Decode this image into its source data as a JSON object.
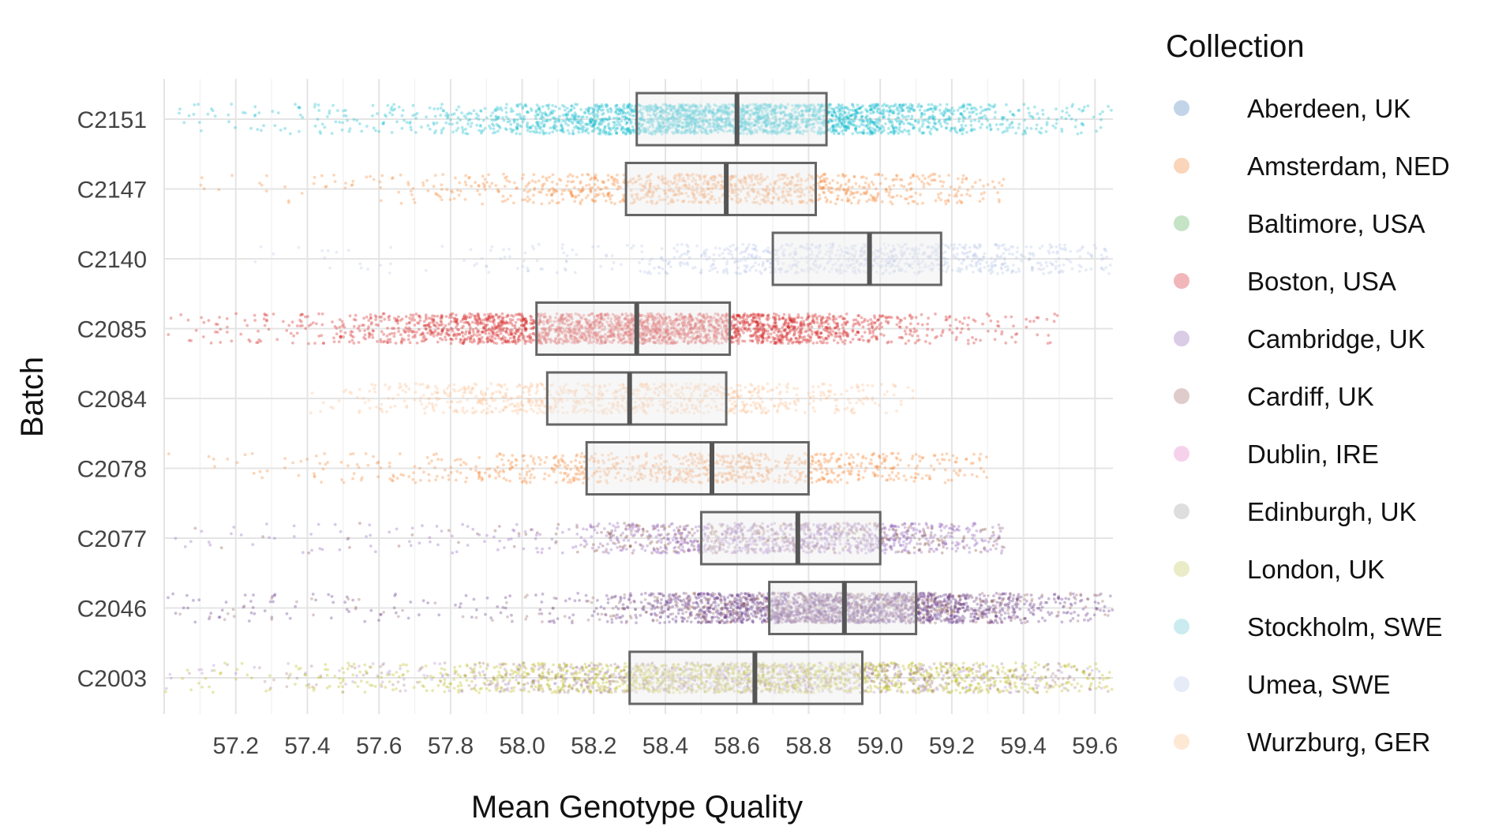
{
  "chart_data": {
    "type": "box_jitter",
    "title": "",
    "xlabel": "Mean Genotype Quality",
    "ylabel": "Batch",
    "xlim": [
      57.0,
      59.65
    ],
    "xticks": [
      57.2,
      57.4,
      57.6,
      57.8,
      58.0,
      58.2,
      58.4,
      58.6,
      58.8,
      59.0,
      59.2,
      59.4,
      59.6
    ],
    "xtick_labels": [
      "57.2",
      "57.4",
      "57.6",
      "57.8",
      "58.0",
      "58.2",
      "58.4",
      "58.6",
      "58.8",
      "59.0",
      "59.2",
      "59.4",
      "59.6"
    ],
    "grid": true,
    "legend": {
      "title": "Collection",
      "position": "right",
      "entries": [
        {
          "name": "Aberdeen, UK",
          "color": "#9ab8d8"
        },
        {
          "name": "Amsterdam, NED",
          "color": "#f7b98a"
        },
        {
          "name": "Baltimore, USA",
          "color": "#9fd09f"
        },
        {
          "name": "Boston, USA",
          "color": "#e8868c"
        },
        {
          "name": "Cambridge, UK",
          "color": "#c2a8d6"
        },
        {
          "name": "Cardiff, UK",
          "color": "#c9a9a6"
        },
        {
          "name": "Dublin, IRE",
          "color": "#f0b2e0"
        },
        {
          "name": "Edinburgh, UK",
          "color": "#c8c8c8"
        },
        {
          "name": "London, UK",
          "color": "#dbe0a0"
        },
        {
          "name": "Stockholm, SWE",
          "color": "#a6dfe6"
        },
        {
          "name": "Umea, SWE",
          "color": "#d4ddf2"
        },
        {
          "name": "Wurzburg, GER",
          "color": "#fbd8b8"
        }
      ]
    },
    "batches": [
      {
        "label": "C2151",
        "q1": 58.32,
        "median": 58.6,
        "q3": 58.85,
        "min": 57.0,
        "max": 59.65,
        "density": 1.0,
        "collections": [
          {
            "name": "Stockholm, SWE",
            "color": "#17becf",
            "opacity": 0.35
          }
        ]
      },
      {
        "label": "C2147",
        "q1": 58.29,
        "median": 58.57,
        "q3": 58.82,
        "min": 57.1,
        "max": 59.35,
        "density": 0.35,
        "collections": [
          {
            "name": "Amsterdam, NED",
            "color": "#f58a3a",
            "opacity": 0.35
          }
        ]
      },
      {
        "label": "C2140",
        "q1": 58.7,
        "median": 58.97,
        "q3": 59.17,
        "min": 57.2,
        "max": 59.65,
        "density": 0.3,
        "collections": [
          {
            "name": "Umea, SWE",
            "color": "#aebfe6",
            "opacity": 0.3
          }
        ]
      },
      {
        "label": "C2085",
        "q1": 58.04,
        "median": 58.32,
        "q3": 58.58,
        "min": 57.0,
        "max": 59.5,
        "density": 1.0,
        "collections": [
          {
            "name": "Boston, USA",
            "color": "#d62728",
            "opacity": 0.35
          }
        ]
      },
      {
        "label": "C2084",
        "q1": 58.07,
        "median": 58.3,
        "q3": 58.57,
        "min": 57.4,
        "max": 59.1,
        "density": 0.3,
        "collections": [
          {
            "name": "Wurzburg, GER",
            "color": "#fbbf93",
            "opacity": 0.35
          }
        ]
      },
      {
        "label": "C2078",
        "q1": 58.18,
        "median": 58.53,
        "q3": 58.8,
        "min": 57.0,
        "max": 59.3,
        "density": 0.3,
        "collections": [
          {
            "name": "Amsterdam, NED",
            "color": "#f58a3a",
            "opacity": 0.35
          }
        ]
      },
      {
        "label": "C2077",
        "q1": 58.5,
        "median": 58.77,
        "q3": 59.0,
        "min": 57.0,
        "max": 59.35,
        "density": 0.5,
        "collections": [
          {
            "name": "Cambridge, UK",
            "color": "#9467bd",
            "opacity": 0.35
          },
          {
            "name": "Cardiff, UK",
            "color": "#8c564b",
            "opacity": 0.35
          }
        ]
      },
      {
        "label": "C2046",
        "q1": 58.69,
        "median": 58.9,
        "q3": 59.1,
        "min": 57.0,
        "max": 59.65,
        "density": 1.0,
        "collections": [
          {
            "name": "Cambridge, UK",
            "color": "#6b3d8c",
            "opacity": 0.35
          },
          {
            "name": "Cardiff, UK",
            "color": "#8c564b",
            "opacity": 0.3
          }
        ]
      },
      {
        "label": "C2003",
        "q1": 58.3,
        "median": 58.65,
        "q3": 58.95,
        "min": 57.0,
        "max": 59.65,
        "density": 1.0,
        "collections": [
          {
            "name": "London, UK",
            "color": "#bcbd22",
            "opacity": 0.35
          },
          {
            "name": "Cambridge, UK",
            "color": "#9467bd",
            "opacity": 0.25
          },
          {
            "name": "Cardiff, UK",
            "color": "#8c564b",
            "opacity": 0.25
          }
        ]
      }
    ]
  }
}
